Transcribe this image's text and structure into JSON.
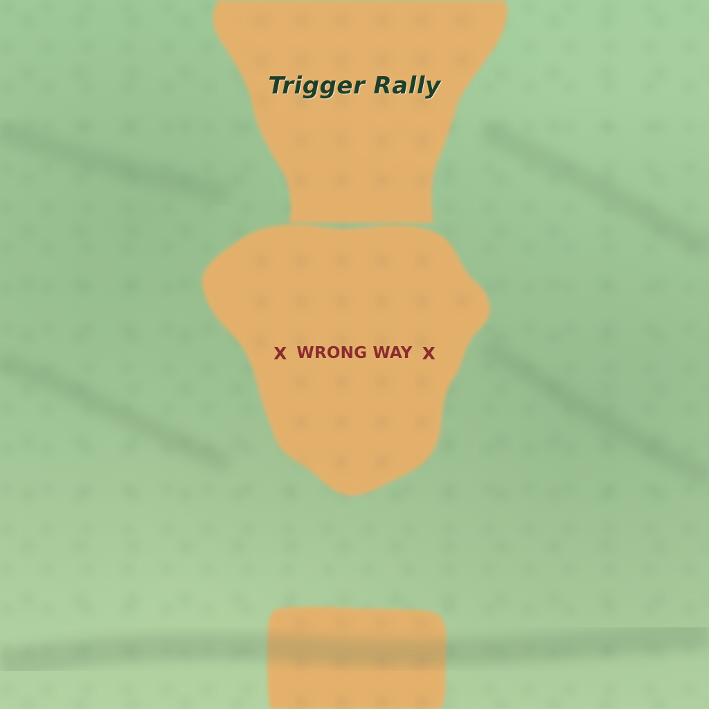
{
  "game": {
    "title": "Trigger Rally"
  },
  "hud": {
    "direction_warning": "WRONG WAY",
    "warning_left_mark": "X",
    "warning_right_mark": "X"
  },
  "scene": {
    "ground": "grass",
    "track_surface": "sand"
  },
  "colors": {
    "grass": "#a9cf9e",
    "track": "#e7b06a",
    "title": "#1f3f27",
    "warning": "#8b2b2f"
  }
}
